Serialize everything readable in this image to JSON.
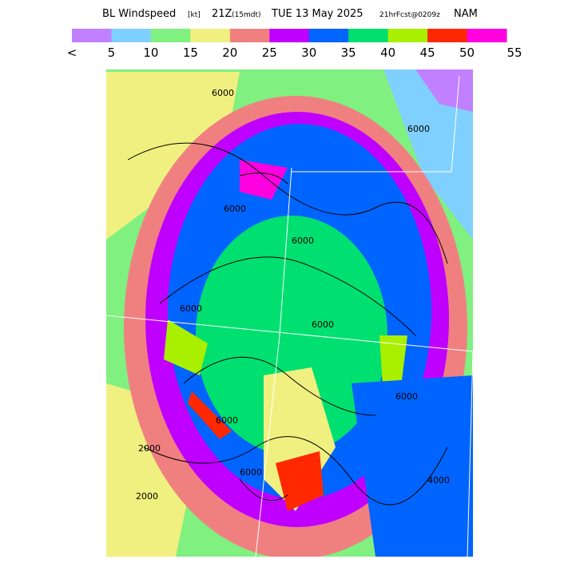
{
  "header": {
    "title_parts": [
      "BL Windspeed",
      "[kt]",
      "21Z",
      "(15mdt)",
      "TUE 13 May 2025",
      "21hrFcst@0209z",
      "NAM"
    ]
  },
  "legend": {
    "labels": [
      "<",
      5,
      10,
      15,
      20,
      25,
      30,
      35,
      40,
      45,
      50,
      55
    ],
    "colors": [
      "#c080ff",
      "#80d0ff",
      "#80f080",
      "#f0f080",
      "#f08080",
      "#c000ff",
      "#0064ff",
      "#00e070",
      "#a8f000",
      "#ff2800",
      "#ff00e0"
    ]
  },
  "contour_labels": [
    "6000",
    "6000",
    "6000",
    "6000",
    "6000",
    "6000",
    "6000",
    "6000",
    "2000",
    "2000",
    "4000",
    "6000"
  ]
}
